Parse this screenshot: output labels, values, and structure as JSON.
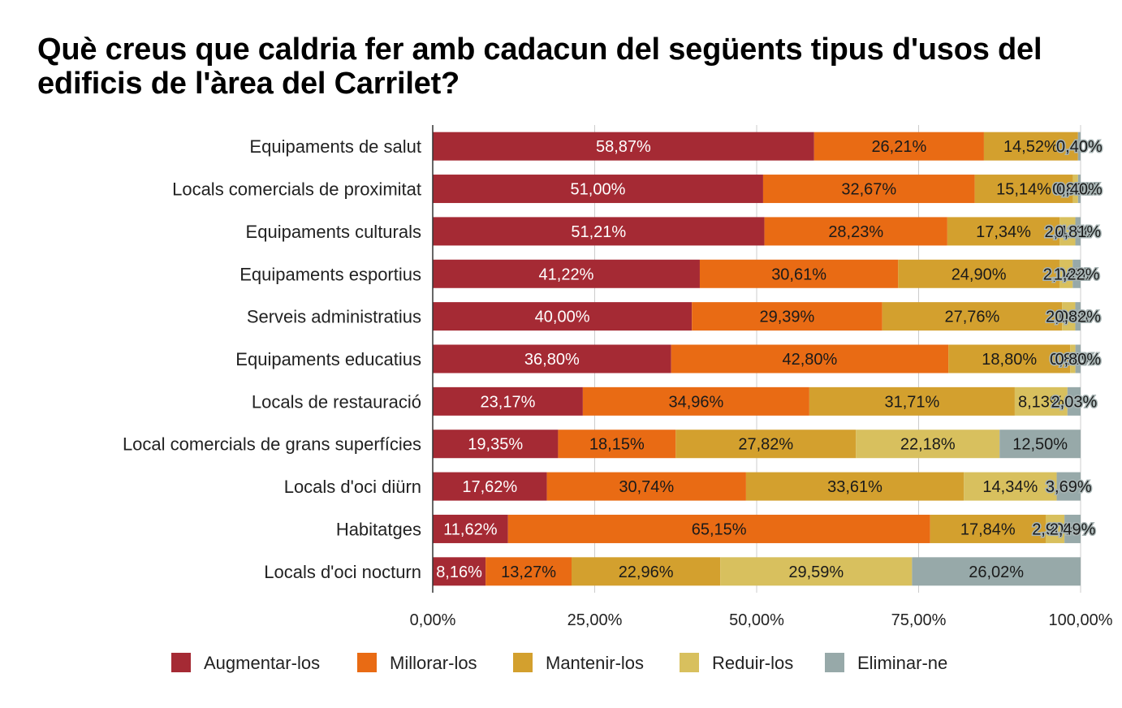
{
  "chart_data": {
    "type": "bar",
    "orientation": "horizontal",
    "stacked": "percent",
    "title": "Què creus que caldria fer amb cadacun del següents tipus d'usos del edificis de l'àrea del Carrilet?",
    "categories": [
      "Equipaments de salut",
      "Locals comercials de proximitat",
      "Equipaments culturals",
      "Equipaments esportius",
      "Serveis administratius",
      "Equipaments educatius",
      "Locals de restauració",
      "Local comercials de grans superfícies",
      "Locals d'oci diürn",
      "Habitatges",
      "Locals d'oci nocturn"
    ],
    "series": [
      {
        "name": "Augmentar-los",
        "color": "#a52a34",
        "values": [
          58.87,
          51.0,
          51.21,
          41.22,
          40.0,
          36.8,
          23.17,
          19.35,
          17.62,
          11.62,
          8.16
        ],
        "labels": [
          "58,87%",
          "51,00%",
          "51,21%",
          "41,22%",
          "40,00%",
          "36,80%",
          "23,17%",
          "19,35%",
          "17,62%",
          "11,62%",
          "8,16%"
        ]
      },
      {
        "name": "Millorar-los",
        "color": "#e96b14",
        "values": [
          26.21,
          32.67,
          28.23,
          30.61,
          29.39,
          42.8,
          34.96,
          18.15,
          30.74,
          65.15,
          13.27
        ],
        "labels": [
          "26,21%",
          "32,67%",
          "28,23%",
          "30,61%",
          "29,39%",
          "42,80%",
          "34,96%",
          "18,15%",
          "30,74%",
          "65,15%",
          "13,27%"
        ]
      },
      {
        "name": "Mantenir-los",
        "color": "#d3a02e",
        "values": [
          14.52,
          15.14,
          17.34,
          24.9,
          27.76,
          18.8,
          31.71,
          27.82,
          33.61,
          17.84,
          22.96
        ],
        "labels": [
          "14,52%",
          "15,14%",
          "17,34%",
          "24,90%",
          "27,76%",
          "18,80%",
          "31,71%",
          "27,82%",
          "33,61%",
          "17,84%",
          "22,96%"
        ]
      },
      {
        "name": "Reduir-los",
        "color": "#d8c05e",
        "values": [
          0.0,
          0.8,
          2.42,
          2.04,
          2.04,
          0.8,
          8.13,
          22.18,
          14.34,
          2.9,
          29.59
        ],
        "labels": [
          "",
          "0,80%",
          "2,42%",
          "2,04%",
          "2,04%",
          "0,80%",
          "8,13%",
          "22,18%",
          "14,34%",
          "2,90%",
          "29,59%"
        ]
      },
      {
        "name": "Eliminar-ne",
        "color": "#97a9a9",
        "values": [
          0.4,
          0.4,
          0.81,
          1.22,
          0.82,
          0.8,
          2.03,
          12.5,
          3.69,
          2.49,
          26.02
        ],
        "labels": [
          "0,40%",
          "0,40%",
          "0,81%",
          "1,22%",
          "0,82%",
          "0,80%",
          "2,03%",
          "12,50%",
          "3,69%",
          "2,49%",
          "26,02%"
        ]
      }
    ],
    "xlim": [
      0,
      100
    ],
    "x_ticks": [
      "0,00%",
      "25,00%",
      "50,00%",
      "75,00%",
      "100,00%"
    ],
    "grid": true,
    "legend": "bottom"
  }
}
